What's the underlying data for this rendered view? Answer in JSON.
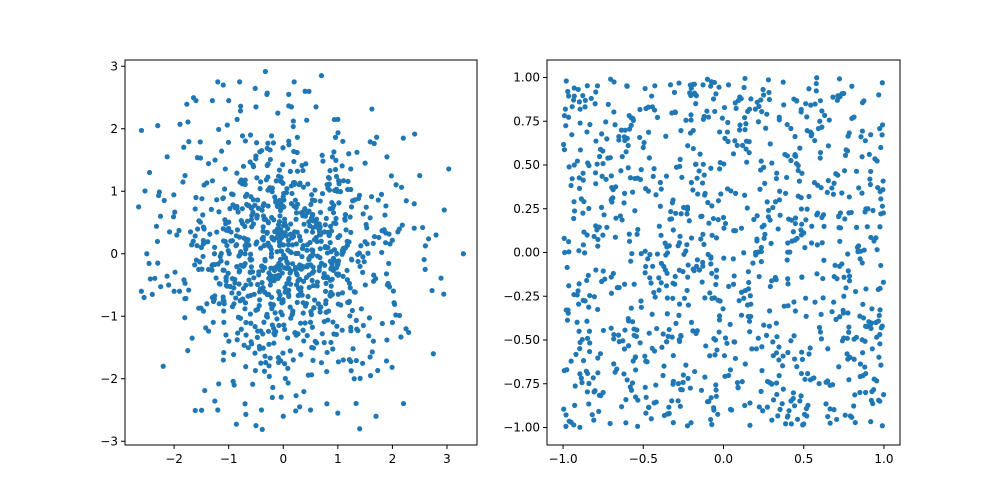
{
  "figure": {
    "background": "#ffffff",
    "marker_color": "#1f77b4"
  },
  "chart_data": [
    {
      "type": "scatter",
      "title": "",
      "xlabel": "",
      "ylabel": "",
      "xlim": [
        -2.9,
        3.55
      ],
      "ylim": [
        -3.06,
        3.1
      ],
      "xticks": [
        -2,
        -1,
        0,
        1,
        2,
        3
      ],
      "yticks": [
        -3,
        -2,
        -1,
        0,
        1,
        2,
        3
      ],
      "xtick_labels": [
        "−2",
        "−1",
        "0",
        "1",
        "2",
        "3"
      ],
      "ytick_labels": [
        "−3",
        "−2",
        "−1",
        "0",
        "1",
        "2",
        "3"
      ],
      "grid": false,
      "legend": "none",
      "distribution": "approximately standard bivariate normal, 1000 points",
      "points": [
        [
          -2.65,
          0.75
        ],
        [
          -2.6,
          -0.6
        ],
        [
          -2.55,
          -0.7
        ],
        [
          -2.5,
          0.0
        ],
        [
          -2.45,
          1.3
        ],
        [
          -2.4,
          -0.65
        ],
        [
          -2.3,
          -0.15
        ],
        [
          -2.3,
          2.05
        ],
        [
          -2.25,
          0.6
        ],
        [
          -2.2,
          -1.8
        ],
        [
          -2.1,
          -0.5
        ],
        [
          -2.0,
          -0.6
        ],
        [
          -1.95,
          0.3
        ],
        [
          -1.9,
          -0.6
        ],
        [
          -1.8,
          1.25
        ],
        [
          -1.75,
          -1.55
        ],
        [
          -1.7,
          0.35
        ],
        [
          -1.65,
          0.2
        ],
        [
          -1.6,
          2.45
        ],
        [
          -1.6,
          0.9
        ],
        [
          -1.55,
          -0.25
        ],
        [
          -1.5,
          0.1
        ],
        [
          -1.45,
          1.1
        ],
        [
          -1.4,
          -0.8
        ],
        [
          -1.3,
          2.45
        ],
        [
          -1.3,
          -0.7
        ],
        [
          -1.25,
          1.5
        ],
        [
          -1.2,
          2.75
        ],
        [
          -1.2,
          -2.5
        ],
        [
          -1.1,
          2.7
        ],
        [
          -1.1,
          0.4
        ],
        [
          -1.05,
          -1.3
        ],
        [
          -1.0,
          2.45
        ],
        [
          -0.9,
          -2.1
        ],
        [
          -0.8,
          2.75
        ],
        [
          -0.7,
          -2.4
        ],
        [
          -0.6,
          1.9
        ],
        [
          -0.5,
          2.35
        ],
        [
          -0.5,
          -2.75
        ],
        [
          -0.4,
          -2.5
        ],
        [
          -0.3,
          2.55
        ],
        [
          -0.2,
          -2.3
        ],
        [
          -0.1,
          2.25
        ],
        [
          0.0,
          -2.6
        ],
        [
          0.1,
          2.55
        ],
        [
          0.15,
          2.35
        ],
        [
          0.2,
          2.75
        ],
        [
          0.3,
          -2.45
        ],
        [
          0.4,
          2.6
        ],
        [
          0.5,
          -2.5
        ],
        [
          0.6,
          2.35
        ],
        [
          0.7,
          2.85
        ],
        [
          0.8,
          -2.4
        ],
        [
          0.9,
          1.55
        ],
        [
          1.0,
          2.15
        ],
        [
          1.0,
          -2.55
        ],
        [
          1.1,
          -1.7
        ],
        [
          1.2,
          1.6
        ],
        [
          1.3,
          -2.0
        ],
        [
          1.4,
          -2.8
        ],
        [
          1.5,
          1.45
        ],
        [
          1.6,
          -1.95
        ],
        [
          1.7,
          -2.6
        ],
        [
          1.8,
          0.95
        ],
        [
          1.9,
          1.55
        ],
        [
          2.0,
          -1.1
        ],
        [
          2.1,
          0.35
        ],
        [
          2.2,
          1.85
        ],
        [
          2.25,
          -1.2
        ],
        [
          2.4,
          0.8
        ],
        [
          2.5,
          1.25
        ],
        [
          2.6,
          -0.25
        ],
        [
          2.75,
          -1.6
        ],
        [
          2.8,
          0.3
        ],
        [
          2.95,
          0.7
        ],
        [
          3.3,
          0.0
        ]
      ]
    },
    {
      "type": "scatter",
      "title": "",
      "xlabel": "",
      "ylabel": "",
      "xlim": [
        -1.1,
        1.1
      ],
      "ylim": [
        -1.1,
        1.1
      ],
      "xticks": [
        -1.0,
        -0.5,
        0.0,
        0.5,
        1.0
      ],
      "yticks": [
        -1.0,
        -0.75,
        -0.5,
        -0.25,
        0.0,
        0.25,
        0.5,
        0.75,
        1.0
      ],
      "xtick_labels": [
        "−1.0",
        "−0.5",
        "0.0",
        "0.5",
        "1.0"
      ],
      "ytick_labels": [
        "−1.00",
        "−0.75",
        "−0.50",
        "−0.25",
        "0.00",
        "0.25",
        "0.50",
        "0.75",
        "1.00"
      ],
      "grid": false,
      "legend": "none",
      "distribution": "approximately uniform on [-1, 1] x [-1, 1], 1000 points",
      "points": [
        [
          -0.98,
          0.98
        ],
        [
          -0.95,
          -0.97
        ],
        [
          -0.93,
          0.5
        ],
        [
          -0.9,
          -0.45
        ],
        [
          -0.85,
          0.1
        ],
        [
          -0.8,
          0.85
        ],
        [
          -0.75,
          -0.8
        ],
        [
          -0.7,
          0.3
        ],
        [
          -0.65,
          -0.2
        ],
        [
          -0.6,
          0.95
        ],
        [
          -0.55,
          -0.6
        ],
        [
          -0.5,
          0.6
        ],
        [
          -0.45,
          -0.95
        ],
        [
          -0.4,
          0.15
        ],
        [
          -0.35,
          -0.35
        ],
        [
          -0.3,
          0.8
        ],
        [
          -0.25,
          -0.7
        ],
        [
          -0.2,
          0.4
        ],
        [
          -0.15,
          -0.1
        ],
        [
          -0.1,
          0.99
        ],
        [
          -0.05,
          -0.5
        ],
        [
          0.0,
          0.2
        ],
        [
          0.05,
          -0.9
        ],
        [
          0.1,
          0.7
        ],
        [
          0.15,
          -0.3
        ],
        [
          0.2,
          0.0
        ],
        [
          0.25,
          0.9
        ],
        [
          0.3,
          -0.75
        ],
        [
          0.35,
          0.35
        ],
        [
          0.4,
          -0.15
        ],
        [
          0.45,
          0.55
        ],
        [
          0.5,
          -0.98
        ],
        [
          0.55,
          0.15
        ],
        [
          0.6,
          0.75
        ],
        [
          0.65,
          -0.55
        ],
        [
          0.7,
          0.45
        ],
        [
          0.75,
          -0.25
        ],
        [
          0.8,
          0.95
        ],
        [
          0.85,
          -0.8
        ],
        [
          0.9,
          0.25
        ],
        [
          0.95,
          -0.4
        ],
        [
          0.98,
          0.6
        ],
        [
          0.99,
          -0.99
        ],
        [
          -0.99,
          0.0
        ],
        [
          0.99,
          0.97
        ]
      ]
    }
  ]
}
